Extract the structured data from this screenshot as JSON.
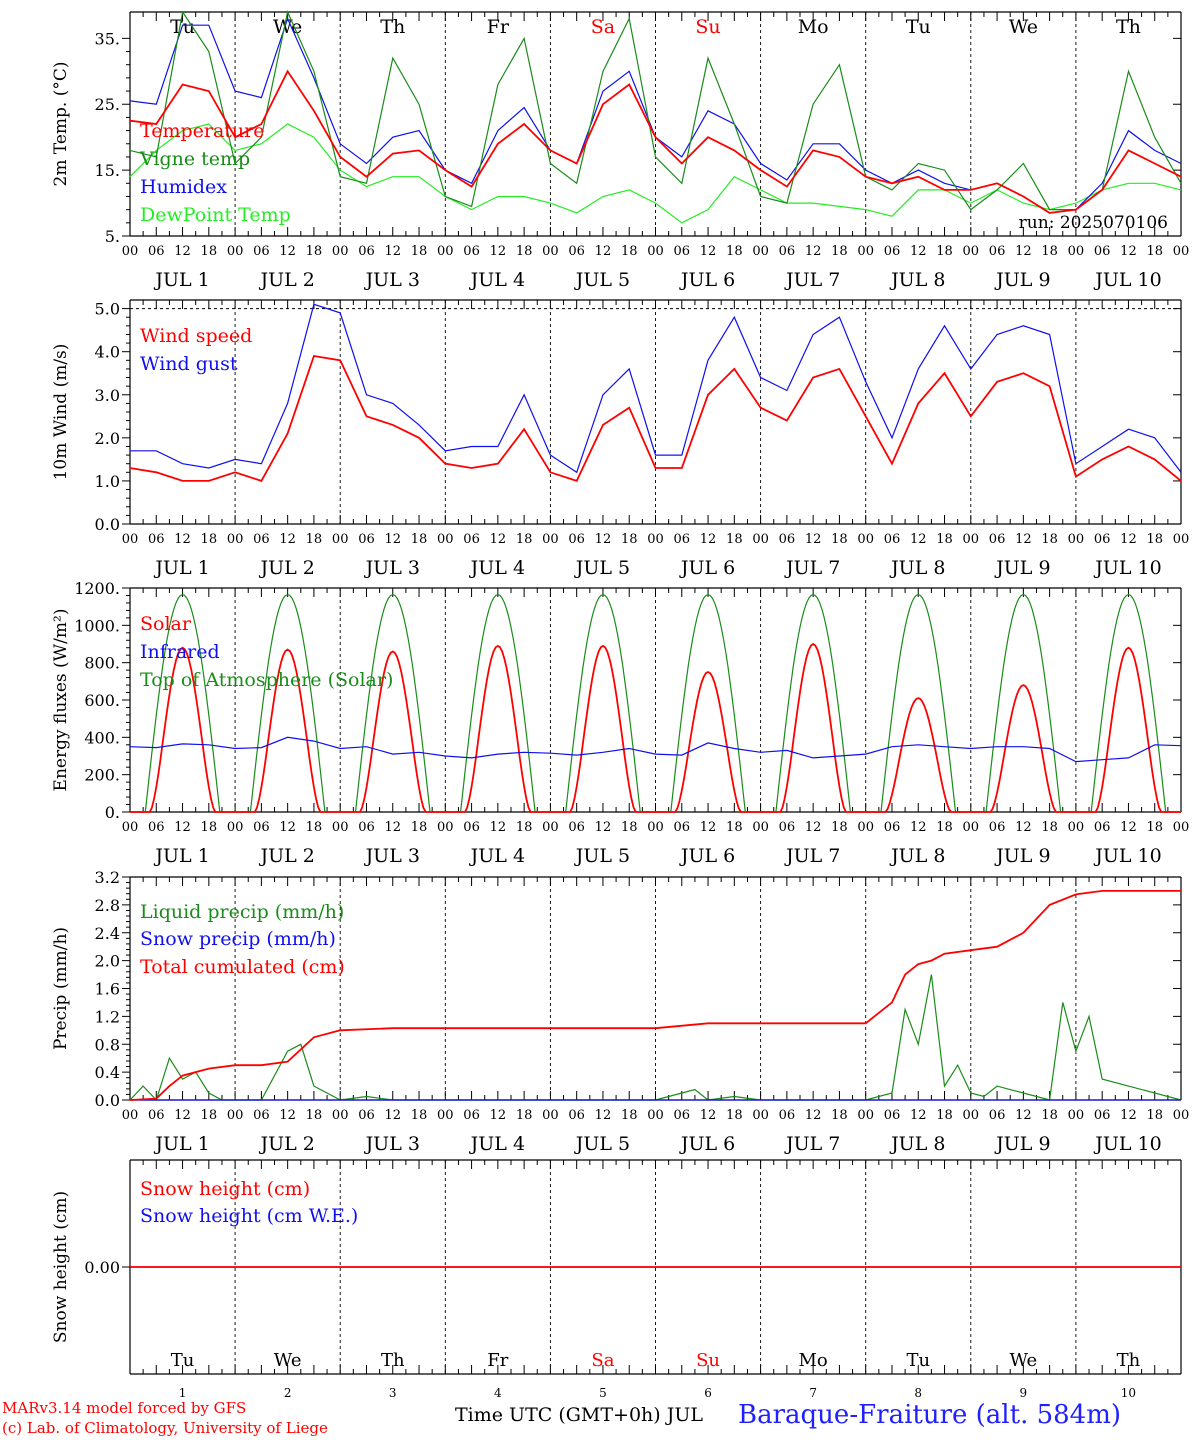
{
  "days": {
    "names": [
      "Tu",
      "We",
      "Th",
      "Fr",
      "Sa",
      "Su",
      "Mo",
      "Tu",
      "We",
      "Th"
    ],
    "weekend_flags": [
      false,
      false,
      false,
      false,
      true,
      true,
      false,
      false,
      false,
      false
    ],
    "hour_labels": [
      "00",
      "06",
      "12",
      "18"
    ],
    "final_hour_label": "00",
    "month": "JUL",
    "dates": [
      "1",
      "2",
      "3",
      "4",
      "5",
      "6",
      "7",
      "8",
      "9",
      "10"
    ]
  },
  "colors": {
    "red": "#ff0000",
    "blue": "#1010ee",
    "green": "#1a8c1a",
    "light_green": "#22ee22",
    "weekend": "#ff0000",
    "frame": "#000000"
  },
  "chart_data": [
    {
      "id": "temp",
      "type": "line",
      "ylabel": "2m Temp. (°C)",
      "ylim": [
        5,
        39
      ],
      "yticks": [
        5,
        15,
        25,
        35
      ],
      "ytick_labels": [
        "5.",
        "15.",
        "25.",
        "35."
      ],
      "grid": "vertical dotted at 00 UTC",
      "annotation": "run: 2025070106",
      "series": [
        {
          "name": "Temperature",
          "color": "red",
          "t": [
            0,
            6,
            12,
            18,
            24,
            30,
            36,
            42,
            48,
            54,
            60,
            66,
            72,
            78,
            84,
            90,
            96,
            102,
            108,
            114,
            120,
            126,
            132,
            138,
            144,
            150,
            156,
            162,
            168,
            174,
            180,
            186,
            192,
            198,
            204,
            210,
            216,
            222,
            228,
            234,
            240
          ],
          "values": [
            22.5,
            22,
            28,
            27,
            20,
            22,
            30,
            24,
            17,
            14,
            17.5,
            18,
            15,
            12.5,
            19,
            22,
            18,
            16,
            25,
            28,
            20,
            16,
            20,
            18,
            15,
            12.5,
            18,
            17,
            14,
            13,
            14,
            12,
            12,
            13,
            11,
            8.5,
            9,
            12,
            18,
            16,
            14
          ]
        },
        {
          "name": "Vigne temp",
          "color": "green",
          "t": [
            0,
            6,
            12,
            18,
            24,
            30,
            36,
            42,
            48,
            54,
            60,
            66,
            72,
            78,
            84,
            90,
            96,
            102,
            108,
            114,
            120,
            126,
            132,
            138,
            144,
            150,
            156,
            162,
            168,
            174,
            180,
            186,
            192,
            198,
            204,
            210,
            216,
            222,
            228,
            234,
            240
          ],
          "values": [
            18,
            17,
            39,
            33,
            16,
            20,
            39,
            30,
            14,
            13,
            32,
            25,
            11,
            9.5,
            28,
            35,
            16,
            13,
            30,
            38,
            17,
            13,
            32,
            22,
            11,
            10,
            25,
            31,
            14,
            12,
            16,
            15,
            9,
            12,
            16,
            9,
            9,
            12,
            30,
            20,
            13
          ]
        },
        {
          "name": "Humidex",
          "color": "blue",
          "t": [
            0,
            6,
            12,
            18,
            24,
            30,
            36,
            42,
            48,
            54,
            60,
            66,
            72,
            78,
            84,
            90,
            96,
            102,
            108,
            114,
            120,
            126,
            132,
            138,
            144,
            150,
            156,
            162,
            168,
            174,
            180,
            186,
            192,
            198,
            204,
            210,
            216,
            222,
            228,
            234,
            240
          ],
          "values": [
            25.5,
            25,
            37,
            37,
            27,
            26,
            38,
            29,
            19,
            16,
            20,
            21,
            15,
            13,
            21,
            24.5,
            18,
            16,
            27,
            30,
            20,
            17,
            24,
            22,
            16,
            13.5,
            19,
            19,
            15,
            13,
            15,
            13,
            12,
            13,
            11,
            8.5,
            9,
            13,
            21,
            18,
            16
          ]
        },
        {
          "name": "DewPoint Temp",
          "color": "light_green",
          "t": [
            0,
            6,
            12,
            18,
            24,
            30,
            36,
            42,
            48,
            54,
            60,
            66,
            72,
            78,
            84,
            90,
            96,
            102,
            108,
            114,
            120,
            126,
            132,
            138,
            144,
            150,
            156,
            162,
            168,
            174,
            180,
            186,
            192,
            198,
            204,
            210,
            216,
            222,
            228,
            234,
            240
          ],
          "values": [
            14,
            18,
            21,
            22,
            18,
            19,
            22,
            20,
            15,
            12.5,
            14,
            14,
            11,
            9,
            11,
            11,
            10,
            8.5,
            11,
            12,
            10,
            7,
            9,
            14,
            12,
            10,
            10,
            9.5,
            9,
            8,
            12,
            12,
            10,
            12,
            10,
            9,
            10,
            12,
            13,
            13,
            12
          ]
        }
      ]
    },
    {
      "id": "wind",
      "type": "line",
      "ylabel": "10m Wind (m/s)",
      "ylim": [
        0,
        5.2
      ],
      "yticks": [
        0,
        1,
        2,
        3,
        4,
        5
      ],
      "ytick_labels": [
        "0.0",
        "1.0",
        "2.0",
        "3.0",
        "4.0",
        "5.0"
      ],
      "hline": 5.0,
      "series": [
        {
          "name": "Wind speed",
          "color": "red",
          "t": [
            0,
            6,
            12,
            18,
            24,
            30,
            36,
            42,
            48,
            54,
            60,
            66,
            72,
            78,
            84,
            90,
            96,
            102,
            108,
            114,
            120,
            126,
            132,
            138,
            144,
            150,
            156,
            162,
            168,
            174,
            180,
            186,
            192,
            198,
            204,
            210,
            216,
            222,
            228,
            234,
            240
          ],
          "values": [
            1.3,
            1.2,
            1.0,
            1.0,
            1.2,
            1.0,
            2.1,
            3.9,
            3.8,
            2.5,
            2.3,
            2.0,
            1.4,
            1.3,
            1.4,
            2.2,
            1.2,
            1.0,
            2.3,
            2.7,
            1.3,
            1.3,
            3.0,
            3.6,
            2.7,
            2.4,
            3.4,
            3.6,
            2.5,
            1.4,
            2.8,
            3.5,
            2.5,
            3.3,
            3.5,
            3.2,
            1.1,
            1.5,
            1.8,
            1.5,
            1.0
          ]
        },
        {
          "name": "Wind gust",
          "color": "blue",
          "t": [
            0,
            6,
            12,
            18,
            24,
            30,
            36,
            42,
            48,
            54,
            60,
            66,
            72,
            78,
            84,
            90,
            96,
            102,
            108,
            114,
            120,
            126,
            132,
            138,
            144,
            150,
            156,
            162,
            168,
            174,
            180,
            186,
            192,
            198,
            204,
            210,
            216,
            222,
            228,
            234,
            240
          ],
          "values": [
            1.7,
            1.7,
            1.4,
            1.3,
            1.5,
            1.4,
            2.8,
            5.1,
            4.9,
            3.0,
            2.8,
            2.3,
            1.7,
            1.8,
            1.8,
            3.0,
            1.6,
            1.2,
            3.0,
            3.6,
            1.6,
            1.6,
            3.8,
            4.8,
            3.4,
            3.1,
            4.4,
            4.8,
            3.3,
            2.0,
            3.6,
            4.6,
            3.6,
            4.4,
            4.6,
            4.4,
            1.4,
            1.8,
            2.2,
            2.0,
            1.2
          ]
        }
      ]
    },
    {
      "id": "energy",
      "type": "line",
      "ylabel": "Energy fluxes (W/m²)",
      "ylim": [
        0,
        1200
      ],
      "yticks": [
        0,
        200,
        400,
        600,
        800,
        1000,
        1200
      ],
      "ytick_labels": [
        "0.",
        "200.",
        "400.",
        "600.",
        "800.",
        "1000.",
        "1200."
      ],
      "series": [
        {
          "name": "Solar",
          "color": "red",
          "peaks": [
            880,
            870,
            860,
            890,
            890,
            750,
            900,
            610,
            680,
            880
          ]
        },
        {
          "name": "Infrared",
          "color": "blue",
          "t": [
            0,
            6,
            12,
            18,
            24,
            30,
            36,
            42,
            48,
            54,
            60,
            66,
            72,
            78,
            84,
            90,
            96,
            102,
            108,
            114,
            120,
            126,
            132,
            138,
            144,
            150,
            156,
            162,
            168,
            174,
            180,
            186,
            192,
            198,
            204,
            210,
            216,
            222,
            228,
            234,
            240
          ],
          "values": [
            350,
            345,
            365,
            360,
            340,
            345,
            400,
            380,
            340,
            350,
            310,
            320,
            300,
            290,
            310,
            320,
            315,
            305,
            320,
            340,
            310,
            305,
            370,
            340,
            320,
            330,
            290,
            300,
            310,
            350,
            360,
            350,
            340,
            350,
            350,
            340,
            270,
            280,
            290,
            360,
            355
          ]
        },
        {
          "name": "Top of Atmosphere (Solar)",
          "color": "green",
          "peak": 1165
        }
      ]
    },
    {
      "id": "precip",
      "type": "line",
      "ylabel": "Precip (mm/h)",
      "ylim": [
        0,
        3.2
      ],
      "yticks": [
        0,
        0.4,
        0.8,
        1.2,
        1.6,
        2.0,
        2.4,
        2.8,
        3.2
      ],
      "ytick_labels": [
        "0.0",
        "0.4",
        "0.8",
        "1.2",
        "1.6",
        "2.0",
        "2.4",
        "2.8",
        "3.2"
      ],
      "series": [
        {
          "name": "Liquid precip (mm/h)",
          "color": "green",
          "t": [
            0,
            3,
            6,
            9,
            12,
            15,
            18,
            21,
            24,
            30,
            36,
            39,
            42,
            45,
            48,
            54,
            60,
            66,
            72,
            120,
            126,
            129,
            132,
            138,
            144,
            168,
            174,
            177,
            180,
            183,
            186,
            189,
            192,
            195,
            198,
            204,
            210,
            213,
            216,
            219,
            222,
            240
          ],
          "values": [
            0,
            0.2,
            0,
            0.6,
            0.3,
            0.4,
            0.1,
            0,
            0,
            0,
            0.7,
            0.8,
            0.2,
            0.1,
            0,
            0.05,
            0,
            0,
            0,
            0,
            0.1,
            0.15,
            0,
            0.05,
            0,
            0,
            0.1,
            1.3,
            0.8,
            1.8,
            0.2,
            0.5,
            0.1,
            0.05,
            0.2,
            0.1,
            0,
            1.4,
            0.7,
            1.2,
            0.3,
            0
          ]
        },
        {
          "name": "Snow precip (mm/h)",
          "color": "blue",
          "t": [
            0,
            240
          ],
          "values": [
            0,
            0
          ]
        },
        {
          "name": "Total cumulated (cm)",
          "color": "red",
          "t": [
            0,
            6,
            9,
            12,
            18,
            24,
            30,
            36,
            42,
            48,
            60,
            72,
            120,
            132,
            144,
            168,
            174,
            177,
            180,
            183,
            186,
            192,
            198,
            204,
            210,
            216,
            222,
            228,
            240
          ],
          "values": [
            0,
            0.02,
            0.2,
            0.35,
            0.45,
            0.5,
            0.5,
            0.55,
            0.9,
            1.0,
            1.03,
            1.03,
            1.03,
            1.1,
            1.1,
            1.1,
            1.4,
            1.8,
            1.95,
            2.0,
            2.1,
            2.15,
            2.2,
            2.4,
            2.8,
            2.95,
            3.0,
            3.0,
            3.0
          ]
        }
      ]
    },
    {
      "id": "snow",
      "type": "line",
      "ylabel": "Snow height (cm)",
      "ylim": [
        -1,
        1
      ],
      "yticks": [
        0
      ],
      "ytick_labels": [
        "0.00"
      ],
      "series": [
        {
          "name": "Snow height (cm)",
          "color": "red",
          "t": [
            0,
            240
          ],
          "values": [
            0,
            0
          ]
        },
        {
          "name": "Snow height (cm W.E.)",
          "color": "blue",
          "t": [
            0,
            240
          ],
          "values": [
            0,
            0
          ]
        }
      ]
    }
  ],
  "footer": {
    "model_line1": "MARv3.14 model forced by GFS",
    "model_line2": "(c) Lab. of Climatology, University of Liege",
    "xaxis_label": "Time UTC (GMT+0h) JUL",
    "station": "Baraque-Fraiture (alt. 584m)"
  }
}
